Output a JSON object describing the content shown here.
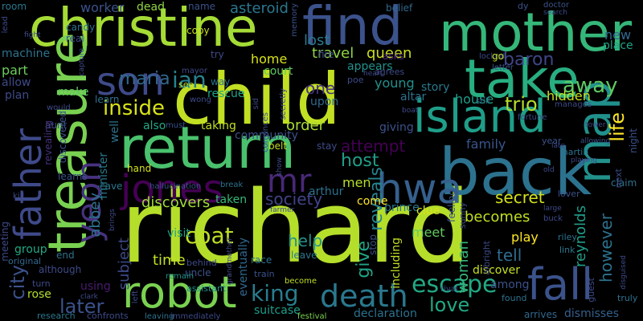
{
  "background": "#000000",
  "colormap": [
    "#440154",
    "#3b528b",
    "#21918c",
    "#5ec962",
    "#fde725"
  ],
  "words": [
    {
      "text": "richard",
      "color": "#b5de2b"
    },
    {
      "text": "child",
      "color": "#c2df23"
    },
    {
      "text": "christine",
      "color": "#a5db36"
    },
    {
      "text": "find",
      "color": "#3b528b"
    },
    {
      "text": "mother",
      "color": "#35b779"
    },
    {
      "text": "back",
      "color": "#2c728e"
    },
    {
      "text": "return",
      "color": "#4ac16d"
    },
    {
      "text": "treasure",
      "color": "#7ad151"
    },
    {
      "text": "take",
      "color": "#28ae80"
    },
    {
      "text": "island",
      "color": "#1f9e89"
    },
    {
      "text": "robot",
      "color": "#7ad151"
    },
    {
      "text": "son",
      "color": "#3e4a89"
    },
    {
      "text": "map",
      "color": "#21918c"
    },
    {
      "text": "fall",
      "color": "#3b528b"
    },
    {
      "text": "hwa",
      "color": "#35608d"
    },
    {
      "text": "father",
      "color": "#3e4a89"
    },
    {
      "text": "jones",
      "color": "#440154"
    },
    {
      "text": "yeon",
      "color": "#46327e"
    },
    {
      "text": "death",
      "color": "#2a788e"
    },
    {
      "text": "mr",
      "color": "#482878"
    },
    {
      "text": "escape",
      "color": "#22a884"
    },
    {
      "text": "inside",
      "color": "#d8e219"
    },
    {
      "text": "king",
      "color": "#287d8e"
    },
    {
      "text": "ian",
      "color": "#26828e"
    },
    {
      "text": "maria",
      "color": "#31688e"
    },
    {
      "text": "baron",
      "color": "#404688"
    },
    {
      "text": "away",
      "color": "#5ec962"
    },
    {
      "text": "trio",
      "color": "#b5de2b"
    },
    {
      "text": "life",
      "color": "#fde725"
    },
    {
      "text": "coat",
      "color": "#bddf26"
    },
    {
      "text": "love",
      "color": "#22a884"
    },
    {
      "text": "later",
      "color": "#3b528b"
    },
    {
      "text": "attempt",
      "color": "#440154"
    },
    {
      "text": "reveals",
      "color": "#26828e"
    },
    {
      "text": "society",
      "color": "#414487"
    },
    {
      "text": "host",
      "color": "#1f9e89"
    },
    {
      "text": "help",
      "color": "#21918c"
    },
    {
      "text": "give",
      "color": "#20a386"
    },
    {
      "text": "city",
      "color": "#3b528b"
    },
    {
      "text": "abbey",
      "color": "#2c728e"
    },
    {
      "text": "discovers",
      "color": "#a0da39"
    },
    {
      "text": "secret",
      "color": "#d2e21b"
    },
    {
      "text": "becomes",
      "color": "#c2df23"
    },
    {
      "text": "tell",
      "color": "#2f6c8e"
    },
    {
      "text": "woman",
      "color": "#35b779"
    },
    {
      "text": "reynolds",
      "color": "#1f9e89"
    },
    {
      "text": "however",
      "color": "#2c728e"
    },
    {
      "text": "travel",
      "color": "#8fd744"
    },
    {
      "text": "queen",
      "color": "#ccdf1f"
    },
    {
      "text": "home",
      "color": "#d8e219"
    },
    {
      "text": "young",
      "color": "#21918c"
    },
    {
      "text": "order",
      "color": "#a8db34"
    },
    {
      "text": "family",
      "color": "#39558c"
    },
    {
      "text": "men",
      "color": "#b5de2b"
    },
    {
      "text": "house",
      "color": "#1f9e89"
    },
    {
      "text": "hidden",
      "color": "#c8e020"
    },
    {
      "text": "new",
      "color": "#31688e"
    },
    {
      "text": "place",
      "color": "#20a386"
    },
    {
      "text": "time",
      "color": "#c2df23"
    },
    {
      "text": "subject",
      "color": "#3e4a89"
    },
    {
      "text": "visit",
      "color": "#20a386"
    },
    {
      "text": "asteroid",
      "color": "#2a788e"
    },
    {
      "text": "worker",
      "color": "#3b528b"
    },
    {
      "text": "dead",
      "color": "#8fd744"
    },
    {
      "text": "lost",
      "color": "#2a788e"
    },
    {
      "text": "court",
      "color": "#5ec962"
    },
    {
      "text": "part",
      "color": "#6ccd5a"
    },
    {
      "text": "story",
      "color": "#2a788e"
    },
    {
      "text": "prince",
      "color": "#2a788e"
    },
    {
      "text": "meet",
      "color": "#63cb5f"
    },
    {
      "text": "discover",
      "color": "#c8e020"
    },
    {
      "text": "play",
      "color": "#fde725"
    },
    {
      "text": "among",
      "color": "#3b528b"
    },
    {
      "text": "using",
      "color": "#481b6d"
    },
    {
      "text": "suitcase",
      "color": "#1f9e89"
    },
    {
      "text": "declaration",
      "color": "#2c728e"
    },
    {
      "text": "dismisses",
      "color": "#35608d"
    },
    {
      "text": "arrives",
      "color": "#31688e"
    },
    {
      "text": "including",
      "color": "#c2df23"
    },
    {
      "text": "clue",
      "color": "#d8e219"
    },
    {
      "text": "come",
      "color": "#fde725"
    },
    {
      "text": "taken",
      "color": "#37b878"
    },
    {
      "text": "arthur",
      "color": "#2c728e"
    },
    {
      "text": "taking",
      "color": "#bddf26"
    },
    {
      "text": "eventually",
      "color": "#31688e"
    },
    {
      "text": "one",
      "color": "#46327e"
    },
    {
      "text": "upon",
      "color": "#31688e"
    },
    {
      "text": "rescue",
      "color": "#20a386"
    },
    {
      "text": "giving",
      "color": "#3b528b"
    },
    {
      "text": "community",
      "color": "#3b528b"
    },
    {
      "text": "altar",
      "color": "#2c728e"
    },
    {
      "text": "appears",
      "color": "#21918c"
    },
    {
      "text": "asks",
      "color": "#482878"
    },
    {
      "text": "belief",
      "color": "#31688e"
    },
    {
      "text": "fire",
      "color": "#3e4a89"
    },
    {
      "text": "candy",
      "color": "#2c728e"
    },
    {
      "text": "real",
      "color": "#3e4a89"
    },
    {
      "text": "copy",
      "color": "#c8e020"
    },
    {
      "text": "name",
      "color": "#3b528b"
    },
    {
      "text": "room",
      "color": "#2a788e"
    },
    {
      "text": "machine",
      "color": "#2c728e"
    },
    {
      "text": "allow",
      "color": "#3e4a89"
    },
    {
      "text": "plan",
      "color": "#3e4a89"
    },
    {
      "text": "make",
      "color": "#5ec962"
    },
    {
      "text": "learn",
      "color": "#2c728e"
    },
    {
      "text": "aunt",
      "color": "#3e4a89"
    },
    {
      "text": "discovered",
      "color": "#3b528b"
    },
    {
      "text": "revealing",
      "color": "#46327e"
    },
    {
      "text": "minister",
      "color": "#2a788e"
    },
    {
      "text": "well",
      "color": "#2c728e"
    },
    {
      "text": "also",
      "color": "#22a884"
    },
    {
      "text": "hand",
      "color": "#d2e21b"
    },
    {
      "text": "cave",
      "color": "#2a788e"
    },
    {
      "text": "learns",
      "color": "#3b528b"
    },
    {
      "text": "meeting",
      "color": "#3e4a89"
    },
    {
      "text": "group",
      "color": "#22a884"
    },
    {
      "text": "end",
      "color": "#2c728e"
    },
    {
      "text": "original",
      "color": "#31688e"
    },
    {
      "text": "although",
      "color": "#3e4a89"
    },
    {
      "text": "rose",
      "color": "#b5de2b"
    },
    {
      "text": "turn",
      "color": "#3e4a89"
    },
    {
      "text": "research",
      "color": "#2a788e"
    },
    {
      "text": "confronts",
      "color": "#3e4a89"
    },
    {
      "text": "leaving",
      "color": "#2c728e"
    },
    {
      "text": "immediately",
      "color": "#3e4a89"
    },
    {
      "text": "festival",
      "color": "#7ad151"
    },
    {
      "text": "become",
      "color": "#c2df23"
    },
    {
      "text": "assistant",
      "color": "#21918c"
    },
    {
      "text": "uncle",
      "color": "#3b528b"
    },
    {
      "text": "behind",
      "color": "#3e4a89"
    },
    {
      "text": "remain",
      "color": "#21918c"
    },
    {
      "text": "leave",
      "color": "#2a788e"
    },
    {
      "text": "race",
      "color": "#2c728e"
    },
    {
      "text": "train",
      "color": "#3b528b"
    },
    {
      "text": "belt",
      "color": "#c2df23"
    },
    {
      "text": "stay",
      "color": "#3e4a89"
    },
    {
      "text": "stop",
      "color": "#3b528b"
    },
    {
      "text": "feeling",
      "color": "#3b528b"
    },
    {
      "text": "sunny",
      "color": "#3e4a89"
    },
    {
      "text": "albright",
      "color": "#3e4a89"
    },
    {
      "text": "rival",
      "color": "#3b528b"
    },
    {
      "text": "found",
      "color": "#2c728e"
    },
    {
      "text": "guest",
      "color": "#3e4a89"
    },
    {
      "text": "truly",
      "color": "#2c728e"
    },
    {
      "text": "riley",
      "color": "#2c728e"
    },
    {
      "text": "link",
      "color": "#2a788e"
    },
    {
      "text": "buck",
      "color": "#3e4a89"
    },
    {
      "text": "lover",
      "color": "#3b528b"
    },
    {
      "text": "claim",
      "color": "#2c728e"
    },
    {
      "text": "night",
      "color": "#3b528b"
    },
    {
      "text": "next",
      "color": "#3e4a89"
    },
    {
      "text": "year",
      "color": "#3b528b"
    },
    {
      "text": "martin",
      "color": "#2c728e"
    },
    {
      "text": "fortune",
      "color": "#3e4a89"
    },
    {
      "text": "manages",
      "color": "#3e4a89"
    },
    {
      "text": "still",
      "color": "#2c728e"
    },
    {
      "text": "letter",
      "color": "#3b528b"
    },
    {
      "text": "locked",
      "color": "#3e4a89"
    },
    {
      "text": "doctor",
      "color": "#3b528b"
    },
    {
      "text": "search",
      "color": "#3e4a89"
    },
    {
      "text": "dy",
      "color": "#3b528b"
    },
    {
      "text": "go",
      "color": "#c2df23"
    },
    {
      "text": "agrees",
      "color": "#3e4a89"
    },
    {
      "text": "poe",
      "color": "#3e4a89"
    },
    {
      "text": "heart",
      "color": "#3e4a89"
    },
    {
      "text": "memory",
      "color": "#3b528b"
    },
    {
      "text": "secretly",
      "color": "#3e4a89"
    },
    {
      "text": "convinces",
      "color": "#3b528b"
    },
    {
      "text": "sid",
      "color": "#3e4a89"
    },
    {
      "text": "mayor",
      "color": "#3e4a89"
    },
    {
      "text": "wong",
      "color": "#3e4a89"
    },
    {
      "text": "way",
      "color": "#2c728e"
    },
    {
      "text": "see",
      "color": "#c2df23"
    },
    {
      "text": "try",
      "color": "#3e4a89"
    },
    {
      "text": "must",
      "color": "#3b528b"
    },
    {
      "text": "capture",
      "color": "#3e4a89"
    },
    {
      "text": "fight",
      "color": "#3e4a89"
    },
    {
      "text": "lead",
      "color": "#3e4a89"
    },
    {
      "text": "would",
      "color": "#3e4a89"
    },
    {
      "text": "kill",
      "color": "#3e4a89"
    },
    {
      "text": "hallucination",
      "color": "#3b528b"
    },
    {
      "text": "break",
      "color": "#2c728e"
    },
    {
      "text": "show",
      "color": "#3e4a89"
    },
    {
      "text": "farmer",
      "color": "#3e4a89"
    },
    {
      "text": "grandmother",
      "color": "#3e4a89"
    },
    {
      "text": "brings",
      "color": "#3e4a89"
    },
    {
      "text": "clark",
      "color": "#3e4a89"
    },
    {
      "text": "left",
      "color": "#3e4a89"
    },
    {
      "text": "disguised",
      "color": "#3e4a89"
    },
    {
      "text": "allowing",
      "color": "#3b528b"
    },
    {
      "text": "playing",
      "color": "#3e4a89"
    },
    {
      "text": "tower",
      "color": "#3e4a89"
    },
    {
      "text": "large",
      "color": "#3e4a89"
    },
    {
      "text": "old",
      "color": "#3e4a89"
    },
    {
      "text": "late",
      "color": "#3e4a89"
    },
    {
      "text": "boat",
      "color": "#3e4a89"
    }
  ]
}
